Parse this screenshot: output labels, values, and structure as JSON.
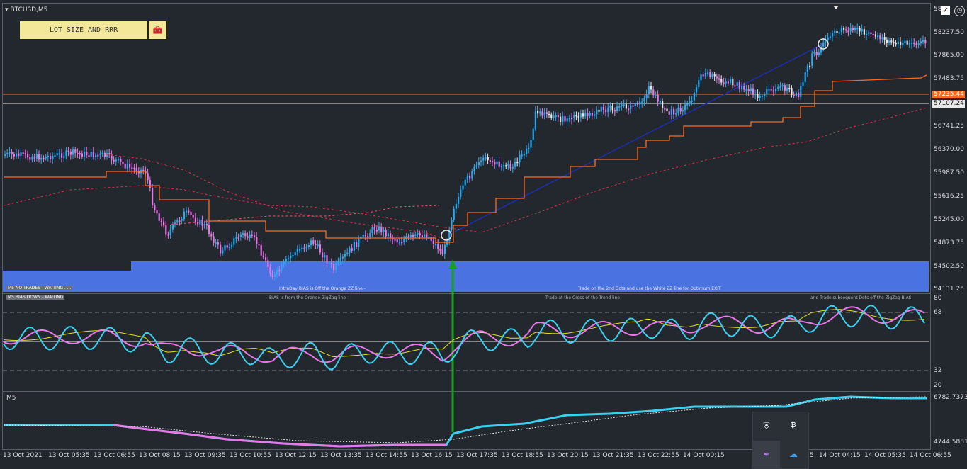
{
  "window": {
    "title": "BTCUSD,M5",
    "collapse_icon": "triangle-down-icon"
  },
  "buttons": {
    "lot_size_label": "LOT SIZE AND RRR",
    "settings_icon": "toolbox-icon"
  },
  "top_right": {
    "check_icon": "checkbox-checked-icon",
    "clock_icon": "clock-icon",
    "top_price_partial": "58"
  },
  "main_axis": [
    "58237.50",
    "57865.00",
    "57483.75",
    "56741.25",
    "56370.00",
    "55987.50",
    "55616.25",
    "55245.00",
    "54873.75",
    "54502.50",
    "54131.25"
  ],
  "price_boxes": {
    "orange": "57235.44",
    "white": "57107.24"
  },
  "banners": {
    "m5_no_trades": "M5  NO TRADES - WAITING . . .",
    "m5_bias_down": "M5  BIAS DOWN - WAITING",
    "intraday_bias": "IntraDay BIAS is Off the Orange ZZ line -",
    "bias_orange": "BIAS is from the Orange ZigZag line -",
    "trade_2nd_dots": "Trade on the 2nd Dots and use the White ZZ line for Optimum EXIT",
    "trade_cross": "Trade at the Cross of the Trend line",
    "subsequent_dots": "and Trade subsequent Dots off the ZigZag BIAS"
  },
  "osc_axis": [
    "80",
    "68",
    "32",
    "20"
  ],
  "sub_panel": {
    "label": "M5",
    "axis_top": "6782.7373",
    "axis_bottom": "4744.5881"
  },
  "time_axis": [
    "13 Oct 2021",
    "13 Oct 05:35",
    "13 Oct 06:55",
    "13 Oct 08:15",
    "13 Oct 09:35",
    "13 Oct 10:55",
    "13 Oct 12:15",
    "13 Oct 13:35",
    "13 Oct 14:55",
    "13 Oct 16:15",
    "13 Oct 17:35",
    "13 Oct 18:55",
    "13 Oct 20:15",
    "13 Oct 21:35",
    "13 Oct 22:55",
    "14 Oct 00:15",
    "5",
    "14 Oct 04:15",
    "14 Oct 05:35",
    "14 Oct 06:55"
  ],
  "tray_icons": [
    "shield-error-icon",
    "app-icon",
    "feather-icon",
    "cloud-icon"
  ],
  "colors": {
    "bull": "#29a9f0",
    "bear": "#e879e8",
    "neutral": "#e8e8e8",
    "orange": "#ff6a1a",
    "blue_zone": "#4a72e0",
    "accent_cyan": "#3ad1f0"
  }
}
